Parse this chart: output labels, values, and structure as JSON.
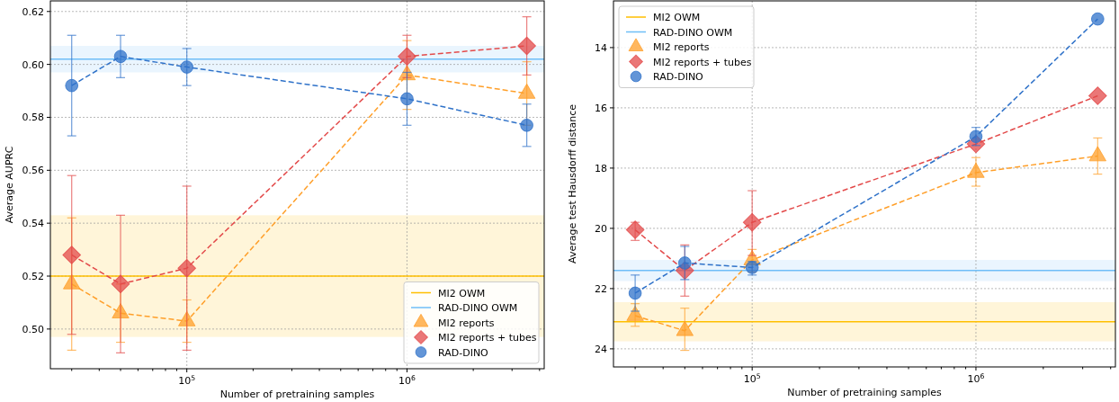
{
  "chart_data": [
    {
      "type": "line",
      "xlabel": "Number of pretraining samples",
      "ylabel": "Average AUPRC",
      "log": "x",
      "grid": true,
      "legend": "bottom right",
      "xlim": [
        24000,
        4200000
      ],
      "ylim": [
        0.485,
        0.624
      ],
      "xticks": [
        {
          "value": 30000,
          "label": null
        },
        {
          "value": 40000,
          "label": null
        },
        {
          "value": 50000,
          "label": null
        },
        {
          "value": 60000,
          "label": null
        },
        {
          "value": 70000,
          "label": null
        },
        {
          "value": 80000,
          "label": null
        },
        {
          "value": 90000,
          "label": null
        },
        {
          "value": 100000,
          "label": "10$^{5}$"
        },
        {
          "value": 200000,
          "label": null
        },
        {
          "value": 300000,
          "label": null
        },
        {
          "value": 400000,
          "label": null
        },
        {
          "value": 500000,
          "label": null
        },
        {
          "value": 600000,
          "label": null
        },
        {
          "value": 700000,
          "label": null
        },
        {
          "value": 800000,
          "label": null
        },
        {
          "value": 900000,
          "label": null
        },
        {
          "value": 1000000,
          "label": "10$^{6}$"
        },
        {
          "value": 2000000,
          "label": null
        },
        {
          "value": 3000000,
          "label": null
        },
        {
          "value": 4000000,
          "label": null
        }
      ],
      "yticks": [
        {
          "value": 0.5,
          "label": "0.50"
        },
        0.52,
        0.54,
        0.56,
        0.58,
        {
          "value": 0.6,
          "label": "0.60"
        },
        0.62
      ],
      "ref_lines": [
        {
          "axis": "y",
          "value": 0.52,
          "label": "MI2 OWM",
          "color": "#ffbf00"
        },
        {
          "axis": "y",
          "value": 0.602,
          "label": "RAD-DINO OWM",
          "color": "#6fbef7"
        }
      ],
      "bands": [
        {
          "axis": "y",
          "from": 0.497,
          "to": 0.543,
          "color": "#ffbf00"
        },
        {
          "axis": "y",
          "from": 0.597,
          "to": 0.607,
          "color": "#6fbef7"
        }
      ],
      "x": [
        30000,
        50000,
        100000,
        1000000,
        3500000
      ],
      "series": [
        {
          "name": "MI2 reports",
          "color": "#ff9f29",
          "marker": "triangle",
          "line_style": "dashed",
          "values": [
            0.517,
            0.506,
            0.503,
            0.596,
            0.589
          ],
          "errors": [
            [
              0.492,
              0.542
            ],
            [
              0.495,
              0.517
            ],
            [
              0.495,
              0.511
            ],
            [
              0.583,
              0.609
            ],
            [
              0.577,
              0.601
            ]
          ]
        },
        {
          "name": "MI2 reports + tubes",
          "color": "#e34a4a",
          "marker": "diamond",
          "line_style": "dashed",
          "values": [
            0.528,
            0.517,
            0.523,
            0.603,
            0.607
          ],
          "errors": [
            [
              0.498,
              0.558
            ],
            [
              0.491,
              0.543
            ],
            [
              0.492,
              0.554
            ],
            [
              0.595,
              0.611
            ],
            [
              0.596,
              0.618
            ]
          ]
        },
        {
          "name": "RAD-DINO",
          "color": "#2f72c9",
          "marker": "circle",
          "line_style": "dashed",
          "values": [
            0.592,
            0.603,
            0.599,
            0.587,
            0.577
          ],
          "errors": [
            [
              0.573,
              0.611
            ],
            [
              0.595,
              0.611
            ],
            [
              0.592,
              0.606
            ],
            [
              0.577,
              0.597
            ],
            [
              0.569,
              0.585
            ]
          ]
        }
      ]
    },
    {
      "type": "line",
      "xlabel": "Number of pretraining samples",
      "ylabel": "Average test Hausdorff distance",
      "log": "x",
      "grid": true,
      "legend": "top left",
      "xlim": [
        24000,
        4200000
      ],
      "ylim": [
        24.6,
        12.45
      ],
      "xticks": [
        {
          "value": 30000,
          "label": null
        },
        {
          "value": 40000,
          "label": null
        },
        {
          "value": 50000,
          "label": null
        },
        {
          "value": 60000,
          "label": null
        },
        {
          "value": 70000,
          "label": null
        },
        {
          "value": 80000,
          "label": null
        },
        {
          "value": 90000,
          "label": null
        },
        {
          "value": 100000,
          "label": "10$^{5}$"
        },
        {
          "value": 200000,
          "label": null
        },
        {
          "value": 300000,
          "label": null
        },
        {
          "value": 400000,
          "label": null
        },
        {
          "value": 500000,
          "label": null
        },
        {
          "value": 600000,
          "label": null
        },
        {
          "value": 700000,
          "label": null
        },
        {
          "value": 800000,
          "label": null
        },
        {
          "value": 900000,
          "label": null
        },
        {
          "value": 1000000,
          "label": "10$^{6}$"
        },
        {
          "value": 2000000,
          "label": null
        },
        {
          "value": 3000000,
          "label": null
        },
        {
          "value": 4000000,
          "label": null
        }
      ],
      "yticks": [
        14,
        16,
        18,
        20,
        22,
        24
      ],
      "ref_lines": [
        {
          "axis": "y",
          "value": 23.1,
          "label": "MI2 OWM",
          "color": "#ffbf00"
        },
        {
          "axis": "y",
          "value": 21.4,
          "label": "RAD-DINO OWM",
          "color": "#6fbef7"
        }
      ],
      "bands": [
        {
          "axis": "y",
          "from": 22.45,
          "to": 23.75,
          "color": "#ffbf00"
        },
        {
          "axis": "y",
          "from": 21.05,
          "to": 21.75,
          "color": "#6fbef7"
        }
      ],
      "x": [
        30000,
        50000,
        100000,
        1000000,
        3500000
      ],
      "series": [
        {
          "name": "MI2 reports",
          "color": "#ff9f29",
          "marker": "triangle",
          "line_style": "dashed",
          "values": [
            22.9,
            23.4,
            21.05,
            18.15,
            17.6
          ],
          "errors": [
            [
              22.5,
              23.25
            ],
            [
              22.65,
              24.05
            ],
            [
              20.7,
              21.45
            ],
            [
              17.65,
              18.6
            ],
            [
              17.0,
              18.2
            ]
          ]
        },
        {
          "name": "MI2 reports + tubes",
          "color": "#e34a4a",
          "marker": "diamond",
          "line_style": "dashed",
          "values": [
            20.05,
            21.4,
            19.8,
            17.2,
            15.6
          ],
          "errors": [
            [
              19.8,
              20.4
            ],
            [
              20.55,
              22.25
            ],
            [
              18.75,
              20.9
            ],
            null,
            null
          ]
        },
        {
          "name": "RAD-DINO",
          "color": "#2f72c9",
          "marker": "circle",
          "line_style": "dashed",
          "values": [
            22.15,
            21.15,
            21.3,
            16.95,
            13.05
          ],
          "errors": [
            [
              21.55,
              22.75
            ],
            [
              20.6,
              21.7
            ],
            [
              21.1,
              21.55
            ],
            [
              16.65,
              17.25
            ],
            null
          ]
        }
      ]
    }
  ]
}
